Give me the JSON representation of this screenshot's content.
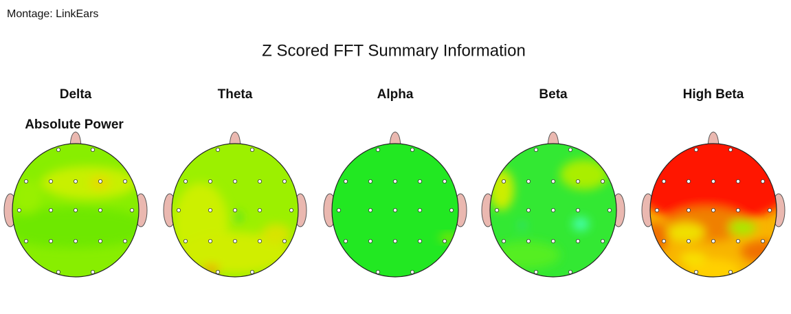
{
  "header": {
    "montage": "Montage:  LinkEars",
    "title": "Z Scored FFT Summary Information"
  },
  "bands": [
    "Delta",
    "Theta",
    "Alpha",
    "Beta",
    "High Beta"
  ],
  "rows": [
    "Absolute Power"
  ]
}
